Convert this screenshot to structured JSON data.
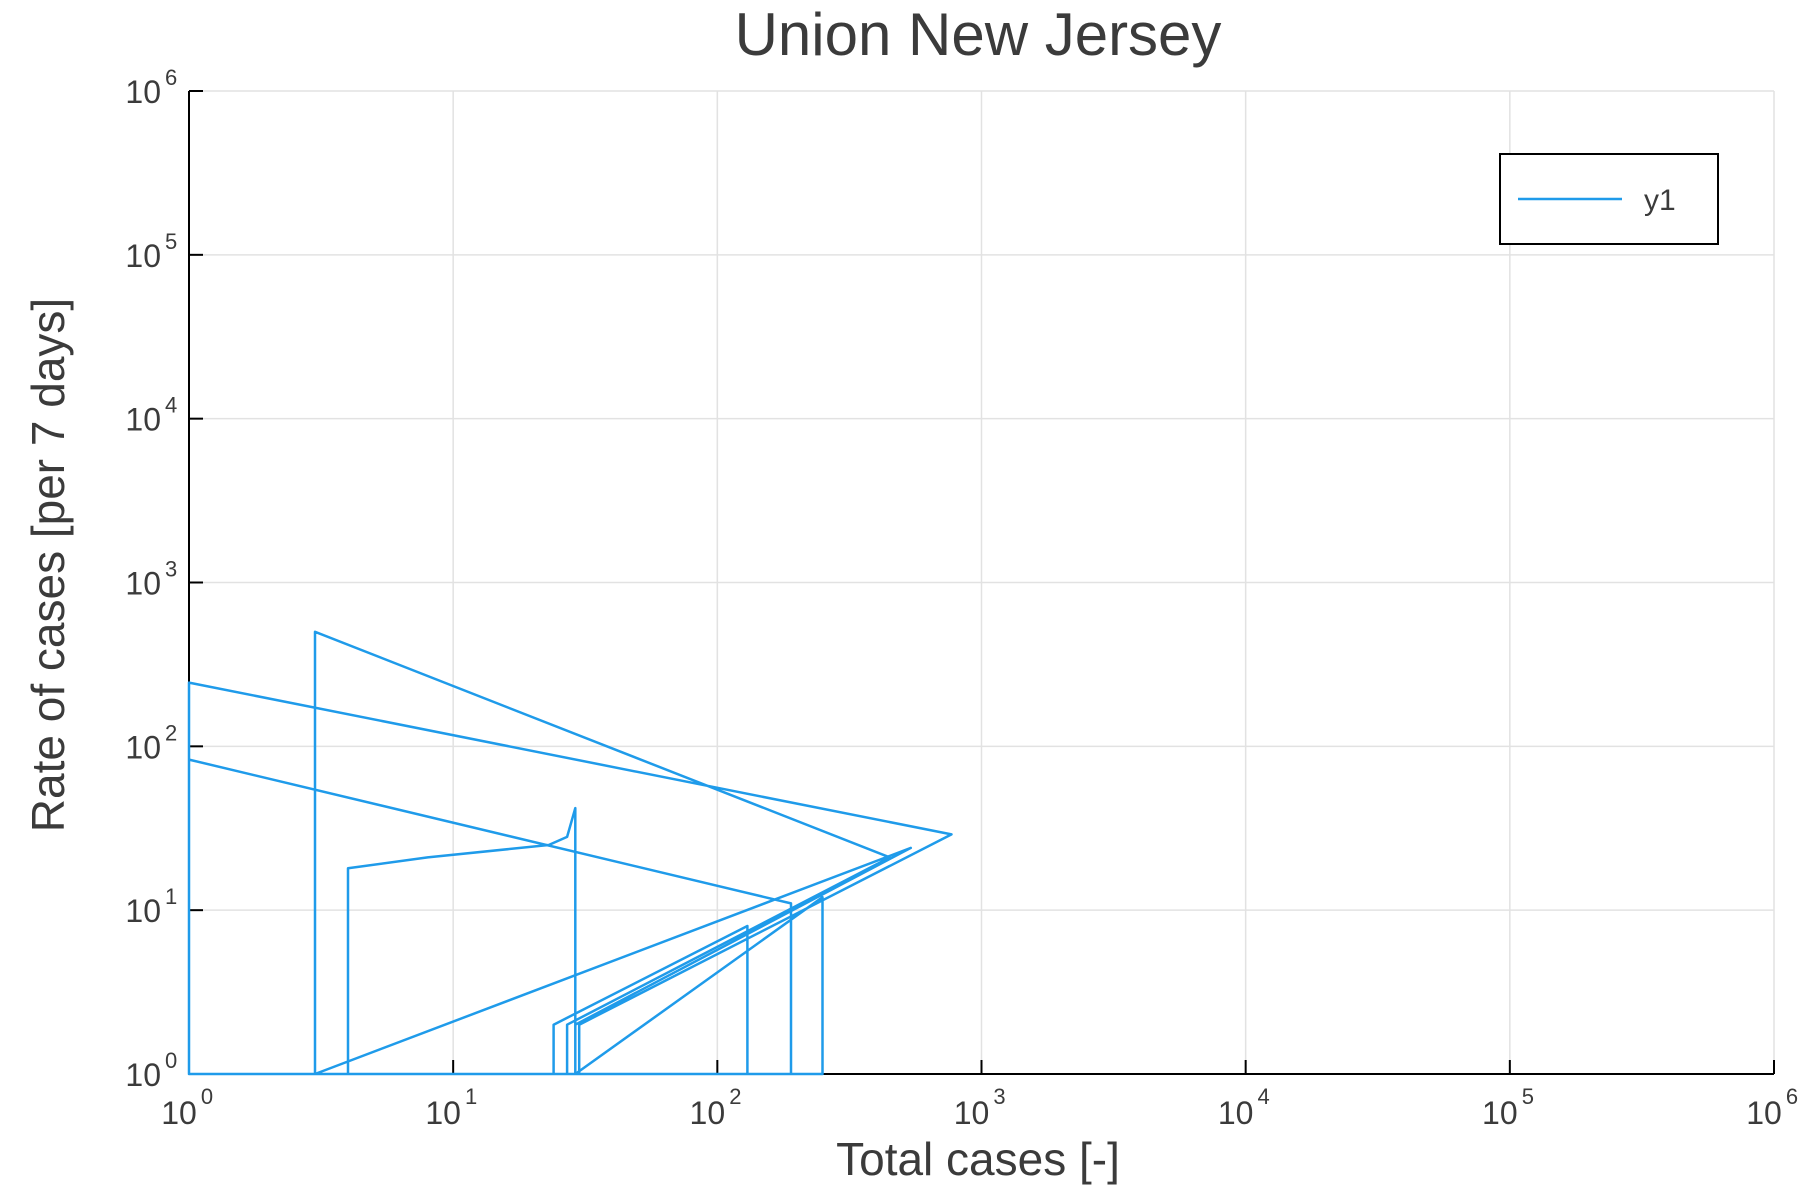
{
  "chart_data": {
    "type": "line",
    "title": "Union New Jersey",
    "xlabel": "Total cases [-]",
    "ylabel": "Rate of cases [per 7 days]",
    "xscale": "log",
    "yscale": "log",
    "xlim": [
      1,
      1000000
    ],
    "ylim": [
      1,
      1000000
    ],
    "grid": true,
    "legend_placement": "top-right",
    "xticks": [
      {
        "base": "10",
        "exp": "0"
      },
      {
        "base": "10",
        "exp": "1"
      },
      {
        "base": "10",
        "exp": "2"
      },
      {
        "base": "10",
        "exp": "3"
      },
      {
        "base": "10",
        "exp": "4"
      },
      {
        "base": "10",
        "exp": "5"
      },
      {
        "base": "10",
        "exp": "6"
      }
    ],
    "yticks": [
      {
        "base": "10",
        "exp": "0"
      },
      {
        "base": "10",
        "exp": "1"
      },
      {
        "base": "10",
        "exp": "2"
      },
      {
        "base": "10",
        "exp": "3"
      },
      {
        "base": "10",
        "exp": "4"
      },
      {
        "base": "10",
        "exp": "5"
      },
      {
        "base": "10",
        "exp": "6"
      }
    ],
    "series": [
      {
        "name": "y1",
        "color": "#1f9bea",
        "x": [
          1,
          1,
          2,
          2,
          3,
          3,
          4,
          4,
          8,
          23,
          27,
          29,
          29,
          24,
          24,
          130,
          130,
          1,
          1,
          190,
          190,
          27,
          27,
          450,
          450,
          3,
          3,
          540,
          540,
          29,
          29,
          250,
          250,
          1,
          1,
          770,
          770,
          30,
          30
        ],
        "y": [
          1,
          1,
          1,
          1,
          1,
          1,
          1,
          18,
          21,
          25,
          28,
          42,
          1,
          1,
          2,
          8,
          1,
          1,
          83,
          11,
          1,
          1,
          2,
          21,
          21,
          500,
          1,
          24,
          24,
          2,
          1,
          12,
          1,
          1,
          245,
          29,
          29,
          2,
          1
        ]
      }
    ]
  }
}
